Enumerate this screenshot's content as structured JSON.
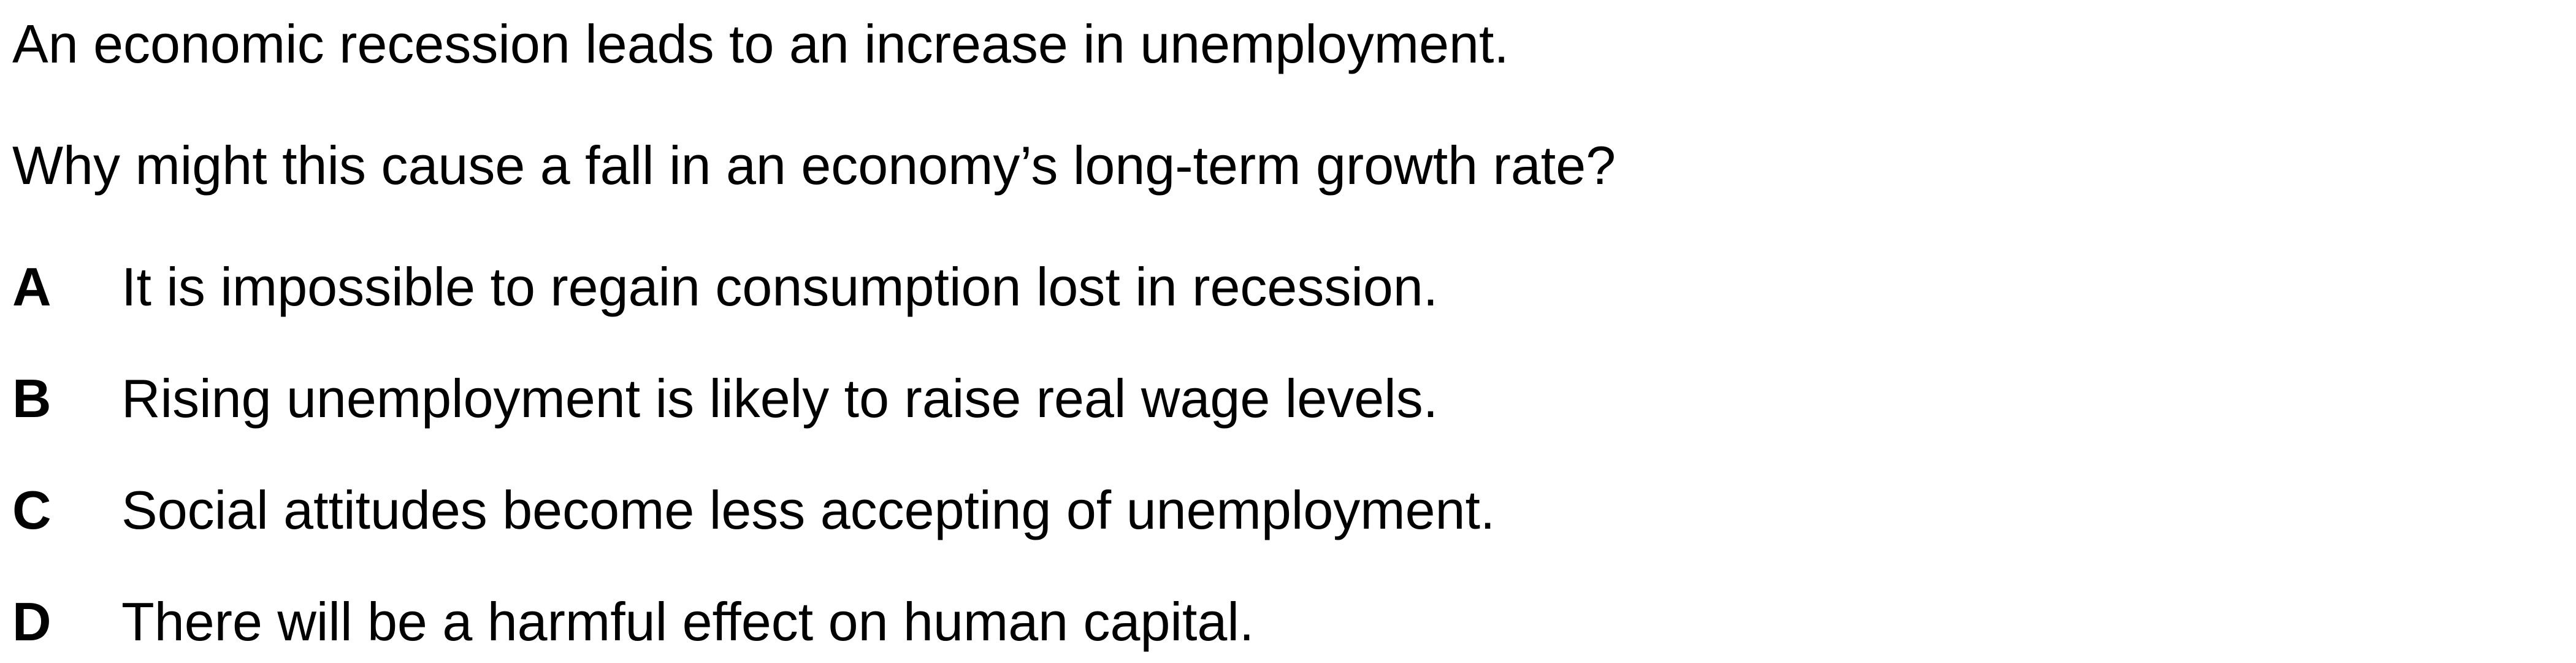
{
  "question": {
    "statement": "An economic recession leads to an increase in unemployment.",
    "prompt": "Why might this cause a fall in an economy’s long-term growth rate?"
  },
  "options": [
    {
      "letter": "A",
      "text": "It is impossible to regain consumption lost in recession."
    },
    {
      "letter": "B",
      "text": "Rising unemployment is likely to raise real wage levels."
    },
    {
      "letter": "C",
      "text": "Social attitudes become less accepting of unemployment."
    },
    {
      "letter": "D",
      "text": "There will be a harmful effect on human capital."
    }
  ]
}
